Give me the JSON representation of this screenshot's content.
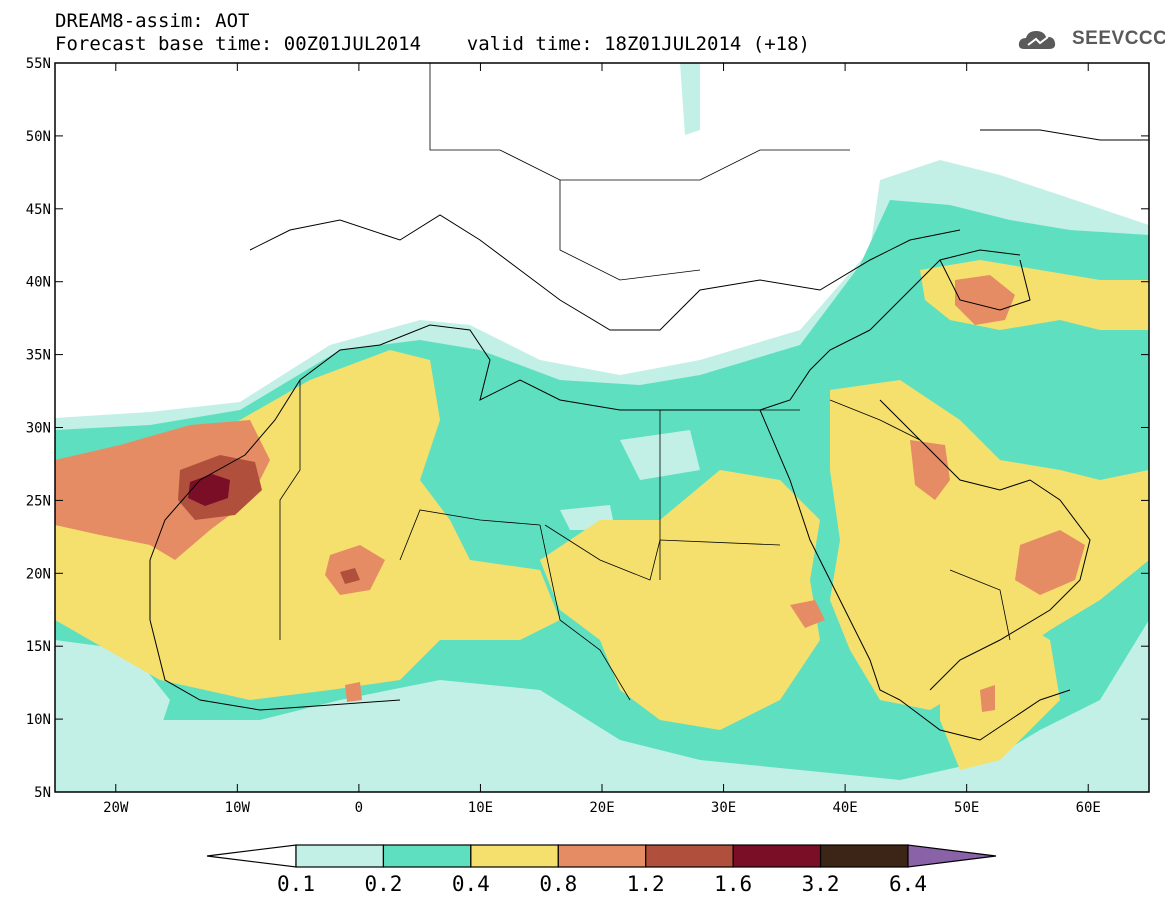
{
  "header": {
    "title_line1": "DREAM8-assim: AOT",
    "title_line2": "Forecast base time: 00Z01JUL2014    valid time: 18Z01JUL2014 (+18)"
  },
  "logo": {
    "text": "SEEVCCC",
    "icon": "cloud-icon"
  },
  "map": {
    "projection": "lat-lon",
    "lon_range": [
      -25,
      65
    ],
    "lat_range": [
      5,
      55
    ],
    "lat_ticks": [
      {
        "value": 55,
        "label": "55N"
      },
      {
        "value": 50,
        "label": "50N"
      },
      {
        "value": 45,
        "label": "45N"
      },
      {
        "value": 40,
        "label": "40N"
      },
      {
        "value": 35,
        "label": "35N"
      },
      {
        "value": 30,
        "label": "30N"
      },
      {
        "value": 25,
        "label": "25N"
      },
      {
        "value": 20,
        "label": "20N"
      },
      {
        "value": 15,
        "label": "15N"
      },
      {
        "value": 10,
        "label": "10N"
      },
      {
        "value": 5,
        "label": "5N"
      }
    ],
    "lon_ticks": [
      {
        "value": -20,
        "label": "20W"
      },
      {
        "value": -10,
        "label": "10W"
      },
      {
        "value": 0,
        "label": "0"
      },
      {
        "value": 10,
        "label": "10E"
      },
      {
        "value": 20,
        "label": "20E"
      },
      {
        "value": 30,
        "label": "30E"
      },
      {
        "value": 40,
        "label": "40E"
      },
      {
        "value": 50,
        "label": "50E"
      },
      {
        "value": 60,
        "label": "60E"
      }
    ]
  },
  "colorbar": {
    "below_color": "#ffffff",
    "above_color": "#8a62a8",
    "colors": [
      "#c2f0e6",
      "#5ee0c0",
      "#f5e06e",
      "#e58c64",
      "#b0503c",
      "#7a0e26",
      "#3c2416"
    ],
    "labels": [
      "0.1",
      "0.2",
      "0.4",
      "0.8",
      "1.2",
      "1.6",
      "3.2",
      "6.4"
    ]
  },
  "palette": {
    "l1": "#c2f0e6",
    "l2": "#5ee0c0",
    "l3": "#f5e06e",
    "l4": "#e58c64",
    "l5": "#b0503c",
    "l6": "#7a0e26"
  }
}
